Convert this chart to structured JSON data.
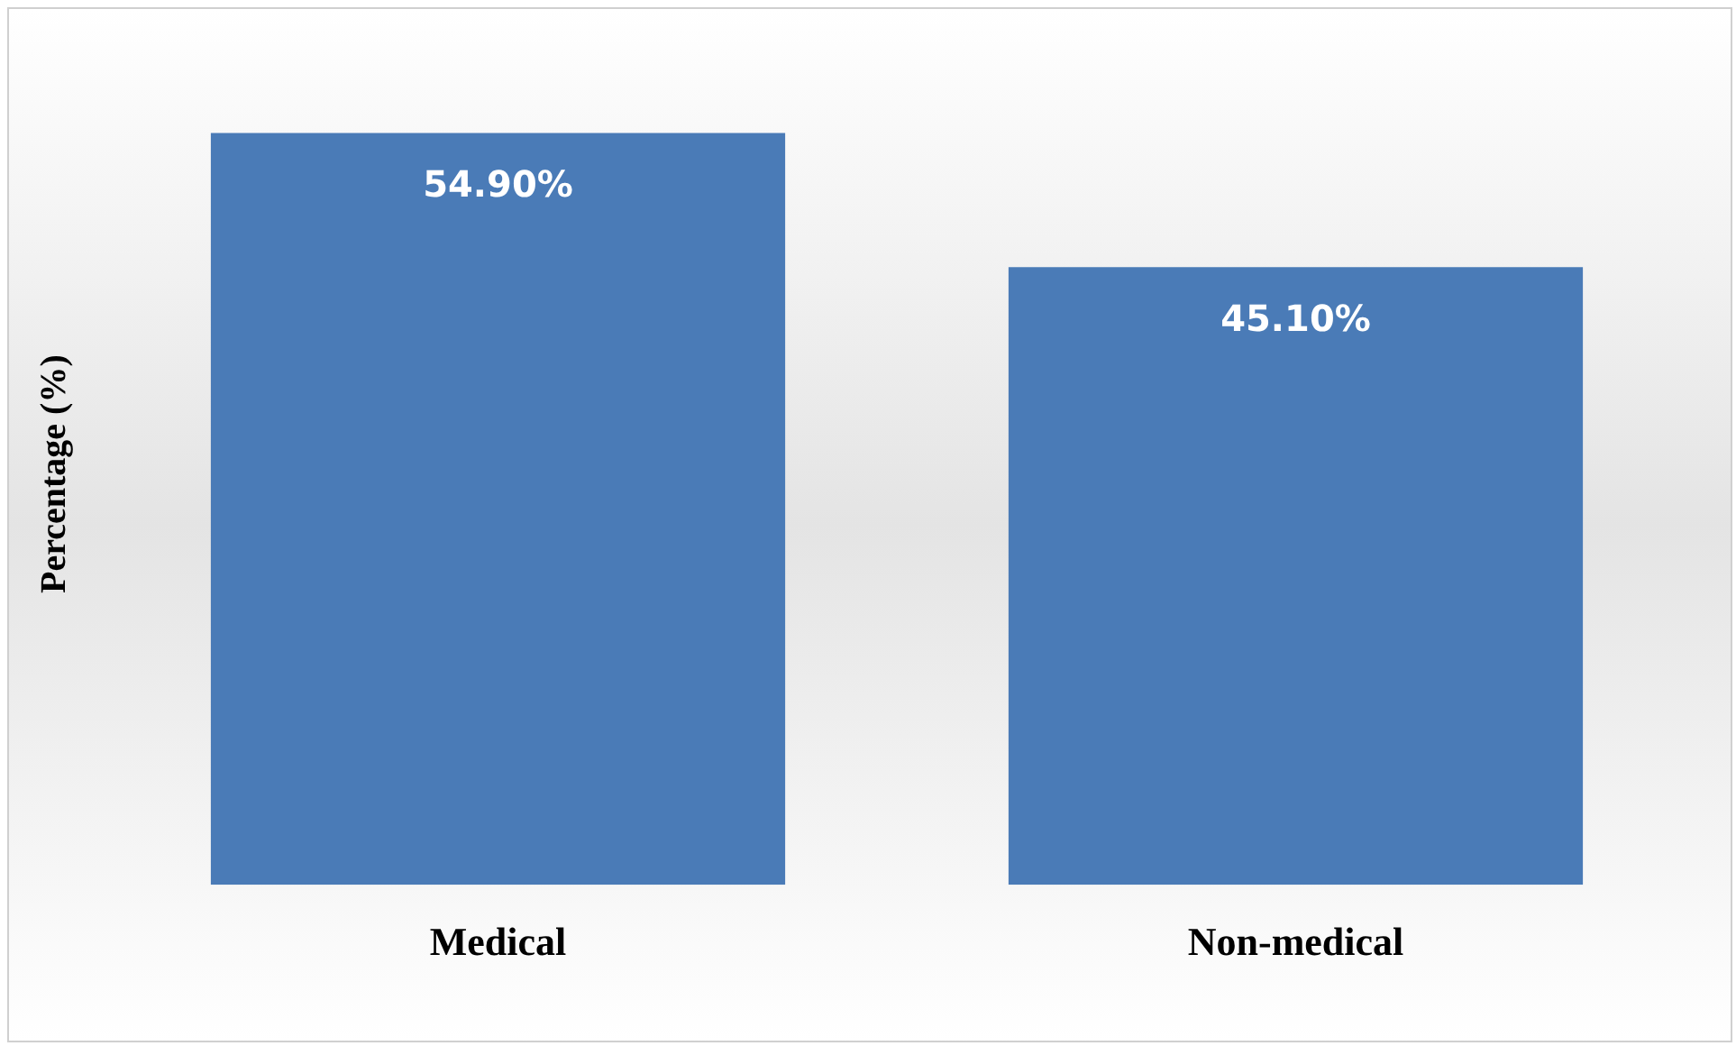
{
  "chart_data": {
    "type": "bar",
    "ylabel": "Percentage (%)",
    "categories": [
      "Medical",
      "Non-medical"
    ],
    "values": [
      54.9,
      45.1
    ],
    "color": "#4a7bb7",
    "value_labels": [
      "54.90%",
      "45.10%"
    ],
    "grid": false,
    "legend": false
  }
}
